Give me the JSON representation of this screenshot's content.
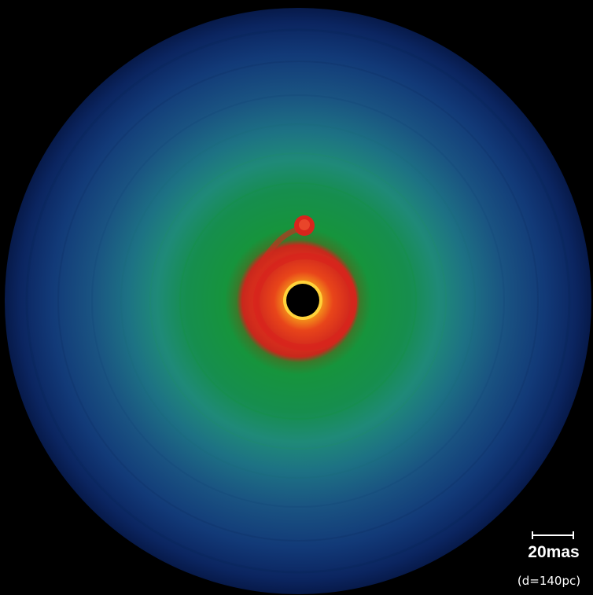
{
  "image": {
    "subject": "disk-density-map",
    "colors": {
      "background": "#000000",
      "outer_edge": "#071a4a",
      "outer_blue": "#123a78",
      "mid_blue": "#1e5f86",
      "teal": "#1f8a78",
      "green": "#16943c",
      "red": "#d8241c",
      "orange": "#f06a14",
      "yellow": "#ffd23a",
      "central_hole": "#000000"
    }
  },
  "scale_bar": {
    "label": "20mas",
    "distance_note": "(d=140pc)"
  }
}
